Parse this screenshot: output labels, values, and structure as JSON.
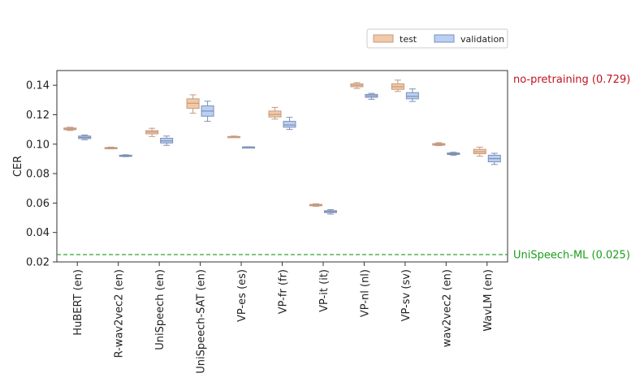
{
  "chart_data": {
    "type": "box",
    "ylabel": "CER",
    "ylim": [
      0.02,
      0.15
    ],
    "yticks": [
      "0.02",
      "0.04",
      "0.06",
      "0.08",
      "0.10",
      "0.12",
      "0.14"
    ],
    "categories": [
      "HuBERT (en)",
      "R-wav2vec2 (en)",
      "UniSpeech (en)",
      "UniSpeech-SAT (en)",
      "VP-es (es)",
      "VP-fr (fr)",
      "VP-it (it)",
      "VP-nl (nl)",
      "VP-sv (sv)",
      "wav2vec2 (en)",
      "WavLM (en)"
    ],
    "series": [
      {
        "name": "test",
        "color": "#f2c9a8",
        "edge": "#c49a7e",
        "boxes": [
          {
            "min": 0.1093,
            "q1": 0.1098,
            "median": 0.1104,
            "q3": 0.111,
            "max": 0.1115
          },
          {
            "min": 0.0968,
            "q1": 0.0971,
            "median": 0.0974,
            "q3": 0.0977,
            "max": 0.098
          },
          {
            "min": 0.1052,
            "q1": 0.107,
            "median": 0.1082,
            "q3": 0.1092,
            "max": 0.1108
          },
          {
            "min": 0.121,
            "q1": 0.1243,
            "median": 0.1278,
            "q3": 0.1308,
            "max": 0.1335
          },
          {
            "min": 0.1045,
            "q1": 0.1048,
            "median": 0.105,
            "q3": 0.1052,
            "max": 0.1055
          },
          {
            "min": 0.117,
            "q1": 0.1185,
            "median": 0.1202,
            "q3": 0.1225,
            "max": 0.125
          },
          {
            "min": 0.0578,
            "q1": 0.0581,
            "median": 0.0586,
            "q3": 0.0591,
            "max": 0.0595
          },
          {
            "min": 0.1378,
            "q1": 0.139,
            "median": 0.14,
            "q3": 0.141,
            "max": 0.1418
          },
          {
            "min": 0.1358,
            "q1": 0.1372,
            "median": 0.139,
            "q3": 0.141,
            "max": 0.1435
          },
          {
            "min": 0.099,
            "q1": 0.0993,
            "median": 0.0998,
            "q3": 0.1004,
            "max": 0.101
          },
          {
            "min": 0.0918,
            "q1": 0.0935,
            "median": 0.0948,
            "q3": 0.0965,
            "max": 0.098
          }
        ]
      },
      {
        "name": "validation",
        "color": "#b9cff5",
        "edge": "#7d8fb3",
        "boxes": [
          {
            "min": 0.103,
            "q1": 0.1038,
            "median": 0.1046,
            "q3": 0.1055,
            "max": 0.1062
          },
          {
            "min": 0.0915,
            "q1": 0.0918,
            "median": 0.0921,
            "q3": 0.0925,
            "max": 0.0928
          },
          {
            "min": 0.0992,
            "q1": 0.1008,
            "median": 0.1022,
            "q3": 0.104,
            "max": 0.1055
          },
          {
            "min": 0.1155,
            "q1": 0.119,
            "median": 0.1225,
            "q3": 0.126,
            "max": 0.1292
          },
          {
            "min": 0.0978,
            "q1": 0.0979,
            "median": 0.098,
            "q3": 0.0981,
            "max": 0.0982
          },
          {
            "min": 0.11,
            "q1": 0.1115,
            "median": 0.113,
            "q3": 0.1155,
            "max": 0.1182
          },
          {
            "min": 0.0525,
            "q1": 0.0535,
            "median": 0.0542,
            "q3": 0.0548,
            "max": 0.0555
          },
          {
            "min": 0.1305,
            "q1": 0.1318,
            "median": 0.1328,
            "q3": 0.1338,
            "max": 0.1345
          },
          {
            "min": 0.129,
            "q1": 0.1308,
            "median": 0.1325,
            "q3": 0.135,
            "max": 0.1375
          },
          {
            "min": 0.0925,
            "q1": 0.093,
            "median": 0.0935,
            "q3": 0.094,
            "max": 0.0945
          },
          {
            "min": 0.0862,
            "q1": 0.088,
            "median": 0.0902,
            "q3": 0.0925,
            "max": 0.0938
          }
        ]
      }
    ],
    "reference_lines": [
      {
        "label": "UniSpeech-ML (0.025)",
        "value": 0.025,
        "color": "#1a9e1a",
        "style": "dashed"
      }
    ],
    "annotations": [
      {
        "label": "no-pretraining (0.729)",
        "color": "#c0141e"
      }
    ],
    "legend": {
      "placement": "top-right",
      "items": [
        "test",
        "validation"
      ]
    }
  }
}
